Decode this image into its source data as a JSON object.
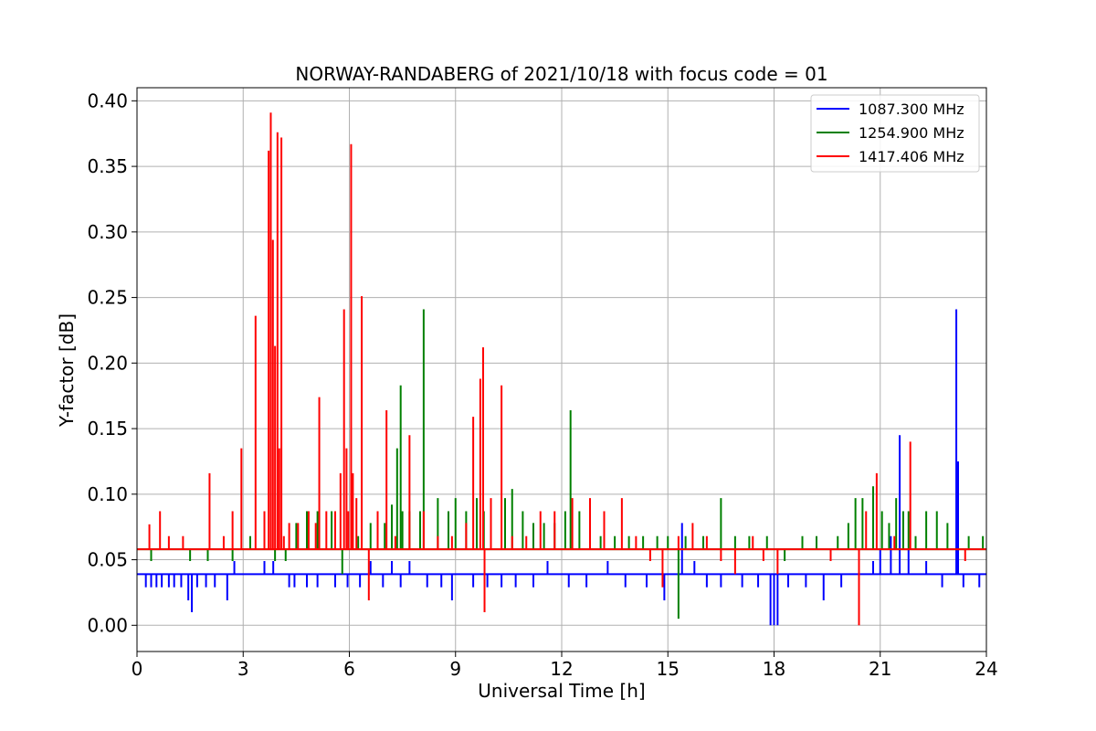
{
  "chart_data": {
    "type": "line",
    "title": "NORWAY-RANDABERG of 2021/10/18 with focus code = 01",
    "xlabel": "Universal Time [h]",
    "ylabel": "Y-factor [dB]",
    "xlim": [
      0,
      24
    ],
    "ylim": [
      -0.02,
      0.41
    ],
    "xticks": [
      0,
      3,
      6,
      9,
      12,
      15,
      18,
      21,
      24
    ],
    "xtick_labels": [
      "0",
      "3",
      "6",
      "9",
      "12",
      "15",
      "18",
      "21",
      "24"
    ],
    "yticks": [
      0.0,
      0.05,
      0.1,
      0.15,
      0.2,
      0.25,
      0.3,
      0.35,
      0.4
    ],
    "ytick_labels": [
      "0.00",
      "0.05",
      "0.10",
      "0.15",
      "0.20",
      "0.25",
      "0.30",
      "0.35",
      "0.40"
    ],
    "grid": true,
    "legend_position": "top-right",
    "series": [
      {
        "name": "1087.300 MHz",
        "color": "#0000ff",
        "baseline": 0.039,
        "x": [
          0.25,
          0.4,
          0.55,
          0.7,
          0.9,
          1.05,
          1.25,
          1.45,
          1.55,
          1.7,
          1.95,
          2.2,
          2.55,
          2.75,
          3.6,
          3.85,
          4.3,
          4.45,
          4.8,
          5.1,
          5.6,
          5.95,
          6.3,
          6.6,
          6.95,
          7.2,
          7.45,
          7.7,
          8.2,
          8.6,
          8.9,
          9.5,
          9.9,
          10.3,
          10.7,
          11.2,
          11.6,
          12.2,
          12.7,
          13.3,
          13.8,
          14.4,
          14.9,
          15.4,
          15.75,
          16.1,
          16.5,
          17.1,
          17.55,
          17.9,
          18.0,
          18.1,
          18.4,
          18.9,
          19.4,
          19.9,
          20.4,
          20.8,
          21.0,
          21.3,
          21.55,
          21.8,
          22.3,
          22.75,
          23.15,
          23.2,
          23.35,
          23.8
        ],
        "y": [
          0.029,
          0.029,
          0.029,
          0.029,
          0.029,
          0.029,
          0.029,
          0.019,
          0.01,
          0.029,
          0.029,
          0.029,
          0.019,
          0.049,
          0.049,
          0.049,
          0.029,
          0.029,
          0.029,
          0.029,
          0.029,
          0.029,
          0.029,
          0.049,
          0.029,
          0.049,
          0.029,
          0.049,
          0.029,
          0.029,
          0.019,
          0.029,
          0.029,
          0.029,
          0.029,
          0.029,
          0.049,
          0.029,
          0.029,
          0.049,
          0.029,
          0.029,
          0.019,
          0.078,
          0.049,
          0.029,
          0.029,
          0.029,
          0.029,
          0.0,
          0.0,
          0.0,
          0.029,
          0.029,
          0.019,
          0.029,
          0.019,
          0.049,
          0.058,
          0.068,
          0.145,
          0.058,
          0.049,
          0.029,
          0.241,
          0.125,
          0.029,
          0.029
        ]
      },
      {
        "name": "1254.900 MHz",
        "color": "#008000",
        "baseline": 0.058,
        "x": [
          0.4,
          1.5,
          2.0,
          2.7,
          3.2,
          3.9,
          4.2,
          4.5,
          4.8,
          5.1,
          5.5,
          5.8,
          6.25,
          6.6,
          7.0,
          7.2,
          7.35,
          7.45,
          7.5,
          7.7,
          8.0,
          8.1,
          8.5,
          8.8,
          9.0,
          9.3,
          9.6,
          9.8,
          10.0,
          10.4,
          10.6,
          10.9,
          11.2,
          11.5,
          11.8,
          12.1,
          12.25,
          12.5,
          12.8,
          13.1,
          13.5,
          13.9,
          14.3,
          14.7,
          15.0,
          15.3,
          15.5,
          16.0,
          16.5,
          16.9,
          17.3,
          17.8,
          18.3,
          18.8,
          19.2,
          19.8,
          20.1,
          20.3,
          20.5,
          20.8,
          21.05,
          21.25,
          21.45,
          21.65,
          21.8,
          22.0,
          22.3,
          22.6,
          22.9,
          23.5,
          23.9
        ],
        "y": [
          0.049,
          0.049,
          0.049,
          0.049,
          0.068,
          0.049,
          0.049,
          0.078,
          0.087,
          0.087,
          0.087,
          0.039,
          0.068,
          0.078,
          0.078,
          0.092,
          0.135,
          0.183,
          0.087,
          0.087,
          0.087,
          0.241,
          0.097,
          0.087,
          0.097,
          0.087,
          0.097,
          0.087,
          0.087,
          0.097,
          0.104,
          0.087,
          0.078,
          0.078,
          0.078,
          0.087,
          0.164,
          0.087,
          0.087,
          0.068,
          0.068,
          0.068,
          0.068,
          0.068,
          0.068,
          0.005,
          0.068,
          0.068,
          0.097,
          0.068,
          0.068,
          0.068,
          0.049,
          0.068,
          0.068,
          0.068,
          0.078,
          0.097,
          0.097,
          0.106,
          0.087,
          0.078,
          0.097,
          0.087,
          0.087,
          0.068,
          0.087,
          0.087,
          0.078,
          0.068,
          0.068
        ]
      },
      {
        "name": "1417.406 MHz",
        "color": "#ff0000",
        "baseline": 0.058,
        "x": [
          0.35,
          0.65,
          0.9,
          1.3,
          2.05,
          2.45,
          2.7,
          2.95,
          3.35,
          3.6,
          3.72,
          3.78,
          3.84,
          3.9,
          3.97,
          4.02,
          4.08,
          4.15,
          4.3,
          4.55,
          4.85,
          5.05,
          5.15,
          5.35,
          5.6,
          5.75,
          5.85,
          5.92,
          5.97,
          6.05,
          6.1,
          6.2,
          6.35,
          6.55,
          6.8,
          7.05,
          7.3,
          7.7,
          8.1,
          8.5,
          8.9,
          9.3,
          9.5,
          9.7,
          9.78,
          9.82,
          10.0,
          10.3,
          10.6,
          11.0,
          11.4,
          11.8,
          12.3,
          12.8,
          13.2,
          13.7,
          14.1,
          14.5,
          14.85,
          15.3,
          15.7,
          16.1,
          16.5,
          16.9,
          17.4,
          17.7,
          18.1,
          18.6,
          19.1,
          19.6,
          20.0,
          20.4,
          20.6,
          20.9,
          21.4,
          21.85,
          22.2,
          22.6,
          23.4,
          23.9
        ],
        "y": [
          0.077,
          0.087,
          0.068,
          0.068,
          0.116,
          0.068,
          0.087,
          0.135,
          0.236,
          0.087,
          0.362,
          0.391,
          0.294,
          0.213,
          0.376,
          0.135,
          0.372,
          0.068,
          0.078,
          0.078,
          0.087,
          0.078,
          0.174,
          0.087,
          0.087,
          0.116,
          0.241,
          0.135,
          0.087,
          0.367,
          0.116,
          0.097,
          0.251,
          0.019,
          0.087,
          0.164,
          0.068,
          0.145,
          0.087,
          0.068,
          0.068,
          0.078,
          0.159,
          0.188,
          0.212,
          0.01,
          0.097,
          0.183,
          0.068,
          0.068,
          0.087,
          0.087,
          0.097,
          0.097,
          0.087,
          0.097,
          0.068,
          0.049,
          0.029,
          0.068,
          0.078,
          0.068,
          0.049,
          0.039,
          0.068,
          0.049,
          0.039,
          0.058,
          0.058,
          0.049,
          0.058,
          0.0,
          0.087,
          0.116,
          0.068,
          0.14,
          0.058,
          0.058,
          0.049,
          0.058
        ]
      }
    ]
  }
}
